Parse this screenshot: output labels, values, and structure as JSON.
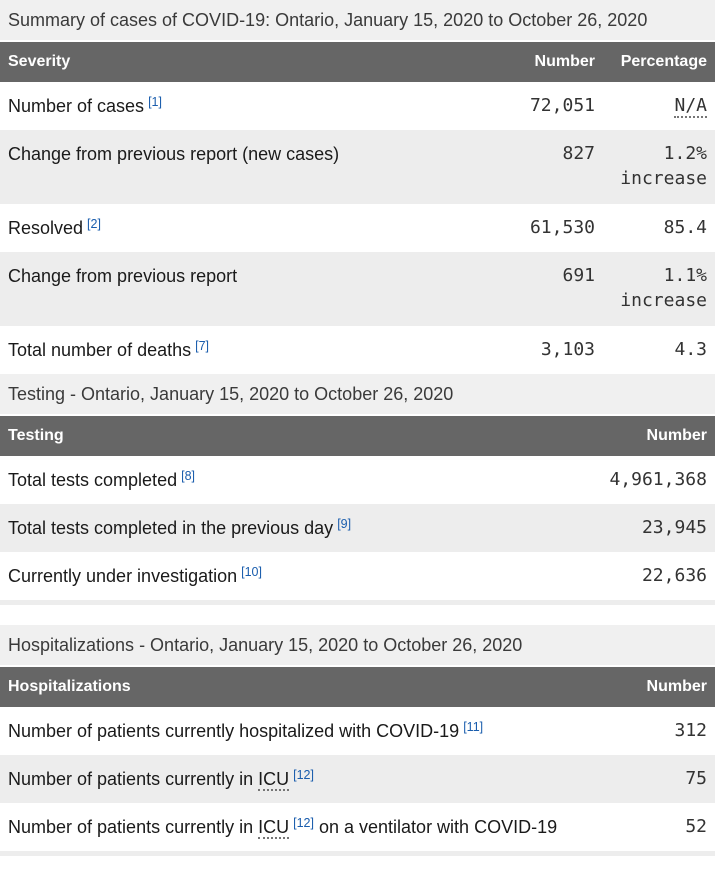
{
  "colors": {
    "header_bg": "#666666",
    "header_text": "#ffffff",
    "alt_row_bg": "#ededed",
    "caption_bg": "#f0f0f0",
    "link_blue": "#1a5dad",
    "body_text": "#1a1a1a",
    "number_text": "#333333"
  },
  "tables": [
    {
      "caption": "Summary of cases of COVID-19: Ontario, January 15, 2020 to October 26, 2020",
      "columns": {
        "label": "Severity",
        "number": "Number",
        "percentage": "Percentage"
      },
      "rows": [
        {
          "label": "Number of cases",
          "footnote": "[1]",
          "number": "72,051",
          "pct_abbr": "N/A"
        },
        {
          "label": "Change from previous report (new cases)",
          "number": "827",
          "pct": "1.2%",
          "pct_note": "increase"
        },
        {
          "label": "Resolved",
          "footnote": "[2]",
          "number": "61,530",
          "pct": "85.4"
        },
        {
          "label": "Change from previous report",
          "number": "691",
          "pct": "1.1%",
          "pct_note": "increase"
        },
        {
          "label": "Total number of deaths",
          "footnote": "[7]",
          "number": "3,103",
          "pct": "4.3"
        }
      ]
    },
    {
      "caption": "Testing - Ontario, January 15, 2020 to October 26, 2020",
      "columns": {
        "label": "Testing",
        "number": "Number"
      },
      "rows": [
        {
          "label": "Total tests completed",
          "footnote": "[8]",
          "number": "4,961,368"
        },
        {
          "label": "Total tests completed in the previous day",
          "footnote": "[9]",
          "number": "23,945"
        },
        {
          "label": "Currently under investigation",
          "footnote": "[10]",
          "number": "22,636"
        }
      ]
    },
    {
      "caption": "Hospitalizations - Ontario, January 15, 2020 to October 26, 2020",
      "columns": {
        "label": "Hospitalizations",
        "number": "Number"
      },
      "rows": [
        {
          "label": "Number of patients currently hospitalized with COVID-19",
          "footnote": "[11]",
          "number": "312"
        },
        {
          "label": "Number of patients currently in ",
          "abbr": "ICU",
          "footnote": "[12]",
          "number": "75"
        },
        {
          "label": "Number of patients currently in ",
          "abbr": "ICU",
          "footnote": "[12]",
          "label_suffix": " on a ventilator with COVID-19",
          "number": "52"
        }
      ]
    }
  ]
}
